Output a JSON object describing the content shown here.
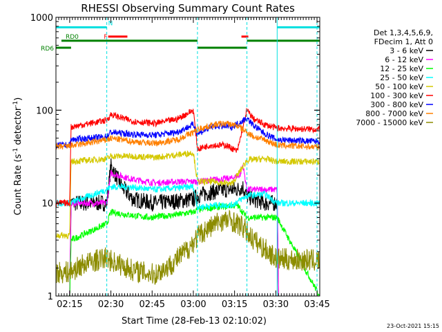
{
  "chart_data": {
    "type": "line",
    "title": "RHESSI Observing Summary Count Rates",
    "xlabel": "Start Time (28-Feb-13 02:10:02)",
    "ylabel_main": "Count Rate (s",
    "ylabel_sup1": "-1",
    "ylabel_mid": " detector",
    "ylabel_sup2": "-1",
    "ylabel_end": ")",
    "x_start_min": 0,
    "xlim_min": [
      0,
      96
    ],
    "ylim": [
      1,
      1000
    ],
    "yscale": "log",
    "x_tick_labels": [
      "02:15",
      "02:30",
      "02:45",
      "03:00",
      "03:15",
      "03:30",
      "03:45"
    ],
    "x_tick_minutes": [
      5,
      20,
      35,
      50,
      65,
      80,
      95
    ],
    "y_tick_labels": [
      "1",
      "10",
      "100",
      "1000"
    ],
    "y_tick_values": [
      1,
      10,
      100,
      1000
    ],
    "legend": {
      "header": [
        "Det 1,3,4,5,6,9,",
        "FDecim 1, Att 0"
      ],
      "entries": [
        {
          "label": "3 - 6 keV",
          "color": "#000000"
        },
        {
          "label": "6 - 12 keV",
          "color": "#ff00ff"
        },
        {
          "label": "12 - 25 keV",
          "color": "#00ff00"
        },
        {
          "label": "25 - 50 keV",
          "color": "#00ffff"
        },
        {
          "label": "50 - 100 keV",
          "color": "#d4c800"
        },
        {
          "label": "100 - 300 keV",
          "color": "#ff0000"
        },
        {
          "label": "300 - 800 keV",
          "color": "#0000ff"
        },
        {
          "label": "800 - 7000 keV",
          "color": "#ff8000"
        },
        {
          "label": "7000 - 15000 keV",
          "color": "#8c8c00"
        }
      ]
    },
    "flags": [
      {
        "label": "N",
        "color": "#00e0e0",
        "level": 780,
        "segments": [
          [
            0,
            18.5
          ],
          [
            80.5,
            96
          ]
        ]
      },
      {
        "label": "F",
        "color": "#ff0000",
        "level": 620,
        "segments": [
          [
            19,
            26
          ],
          [
            67.5,
            70
          ]
        ]
      },
      {
        "label": "RD0",
        "color": "#008000",
        "level": 560,
        "segments": [
          [
            2,
            51.5
          ],
          [
            69.5,
            96
          ]
        ]
      },
      {
        "label": "RD6",
        "color": "#008000",
        "level": 470,
        "segments": [
          [
            0,
            5.5
          ],
          [
            51.5,
            69.5
          ]
        ]
      }
    ],
    "boundaries_minutes": [
      0,
      18.5,
      51.5,
      69.5,
      80.5,
      95
    ],
    "series": [
      {
        "name": "3 - 6 keV",
        "color": "#000000",
        "x": [
          0,
          5,
          5.5,
          18.5,
          20,
          24,
          28,
          36,
          44,
          50,
          51.5,
          56,
          62,
          66,
          68,
          69.5,
          72,
          76,
          80.5,
          81,
          96
        ],
        "y": [
          1,
          1,
          10,
          10,
          25,
          15,
          11,
          10,
          10.5,
          11,
          12,
          13,
          14,
          14,
          15,
          12,
          11,
          10,
          10,
          1,
          1
        ]
      },
      {
        "name": "6 - 12 keV",
        "color": "#ff00ff",
        "x": [
          0,
          5,
          5.5,
          18.5,
          20,
          28,
          36,
          44,
          50,
          51.5,
          58,
          64,
          67,
          68,
          69.5,
          76,
          80.5,
          81,
          96
        ],
        "y": [
          1,
          1,
          10,
          10,
          21,
          18,
          16.5,
          17,
          17,
          17,
          18,
          18.5,
          20,
          26,
          14,
          14,
          14,
          1,
          1
        ]
      },
      {
        "name": "12 - 25 keV",
        "color": "#00ff00",
        "x": [
          0,
          5,
          5.5,
          18.5,
          20,
          26,
          34,
          44,
          50,
          51.5,
          58,
          66,
          69.5,
          76,
          80.5,
          96
        ],
        "y": [
          1,
          1,
          4,
          6,
          8,
          7.5,
          7,
          7.5,
          8,
          8.5,
          9,
          9.5,
          7,
          7,
          7,
          1
        ]
      },
      {
        "name": "25 - 50 keV",
        "color": "#00ffff",
        "x": [
          0,
          5,
          18.5,
          20,
          26,
          36,
          44,
          50,
          51.5,
          58,
          64,
          69.5,
          76,
          80.5,
          96
        ],
        "y": [
          10,
          10,
          14,
          15,
          15,
          14,
          14.5,
          15,
          9,
          9.5,
          9.5,
          12,
          12.5,
          10,
          10
        ]
      },
      {
        "name": "50 - 100 keV",
        "color": "#d4c800",
        "x": [
          0,
          5,
          5.5,
          18.5,
          20,
          28,
          36,
          44,
          50,
          51.5,
          58,
          64,
          69.5,
          76,
          80.5,
          96
        ],
        "y": [
          4.5,
          4.5,
          28,
          30,
          32,
          32,
          31,
          33,
          35,
          17,
          17,
          16,
          29,
          30,
          28,
          28
        ]
      },
      {
        "name": "100 - 300 keV",
        "color": "#ff0000",
        "x": [
          0,
          5,
          5.5,
          18.5,
          20,
          28,
          36,
          44,
          50,
          51.5,
          56,
          62,
          66,
          69.5,
          72,
          76,
          80.5,
          96
        ],
        "y": [
          10,
          10,
          66,
          78,
          90,
          76,
          72,
          80,
          100,
          38,
          42,
          42,
          36,
          100,
          80,
          70,
          64,
          62
        ]
      },
      {
        "name": "300 - 800 keV",
        "color": "#0000ff",
        "x": [
          0,
          5,
          5.5,
          18.5,
          20,
          28,
          36,
          44,
          50,
          51.5,
          58,
          64,
          69.5,
          72,
          76,
          80.5,
          96
        ],
        "y": [
          42,
          42,
          48,
          52,
          58,
          55,
          54,
          58,
          70,
          56,
          68,
          66,
          82,
          68,
          56,
          48,
          46
        ]
      },
      {
        "name": "800 - 7000 keV",
        "color": "#ff8000",
        "x": [
          0,
          5,
          18.5,
          20,
          28,
          36,
          44,
          50,
          52,
          58,
          62,
          66,
          69.5,
          72,
          76,
          80.5,
          96
        ],
        "y": [
          40,
          41,
          48,
          50,
          46,
          44,
          48,
          58,
          63,
          70,
          72,
          68,
          58,
          52,
          48,
          42,
          40
        ]
      },
      {
        "name": "7000 - 15000 keV",
        "color": "#8c8c00",
        "x": [
          0,
          5,
          10,
          18.5,
          20,
          28,
          36,
          42,
          48,
          52,
          56,
          60,
          64,
          68,
          72,
          76,
          80.5,
          96
        ],
        "y": [
          1.8,
          1.8,
          2.2,
          2.6,
          2.4,
          1.9,
          1.7,
          2.2,
          3.2,
          4.5,
          5.5,
          6.5,
          6.5,
          5.5,
          4,
          3.2,
          2.5,
          2.4
        ]
      }
    ]
  },
  "footer": {
    "date_stamp": "23-Oct-2021 15:15"
  }
}
